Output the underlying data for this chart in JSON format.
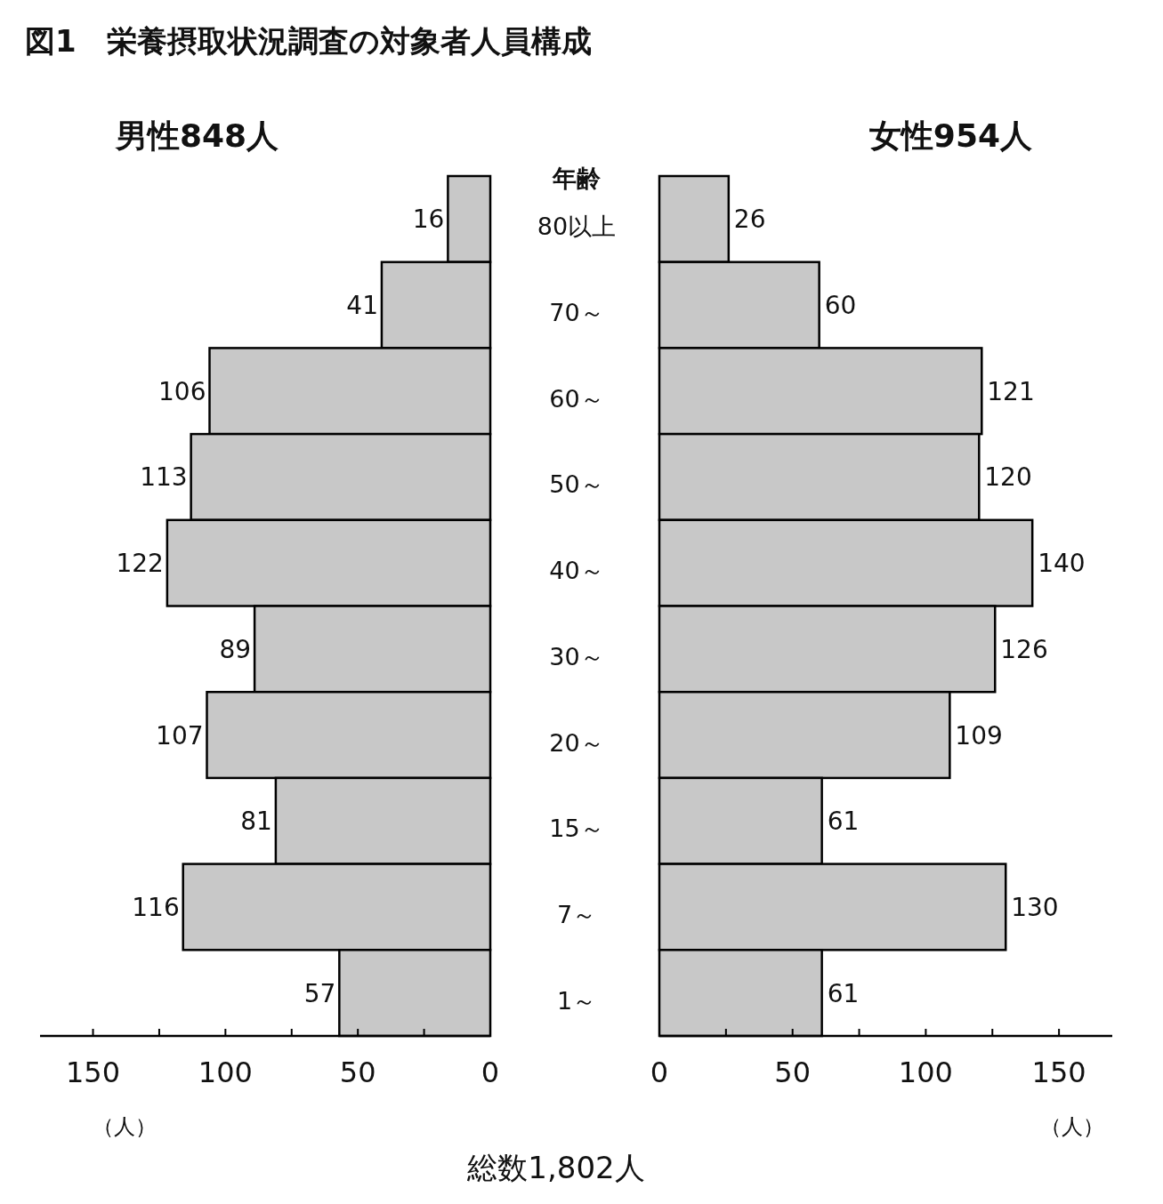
{
  "chart_data": [
    {
      "type": "bar",
      "orientation": "horizontal",
      "title": "図1　栄養摂取状況調査の対象者人員構成",
      "subtitle": "男性848人",
      "ylabel": "年齢",
      "xlabel": "（人）",
      "annotations": [
        "総数1,802人"
      ],
      "categories": [
        "80以上",
        "70～",
        "60～",
        "50～",
        "40～",
        "30～",
        "20～",
        "15～",
        "7～",
        "1～"
      ],
      "values": [
        16,
        41,
        106,
        113,
        122,
        89,
        107,
        81,
        116,
        57
      ],
      "color": "#c8c8c8",
      "xlim": [
        170,
        0
      ],
      "xticks": [
        150,
        {
          "value": 125,
          "label": null
        },
        100,
        {
          "value": 75,
          "label": null
        },
        50,
        {
          "value": 25,
          "label": null
        },
        0
      ],
      "data_labels": true
    },
    {
      "type": "bar",
      "orientation": "horizontal",
      "subtitle": "女性954人",
      "xlabel": "（人）",
      "categories": [
        null,
        null,
        null,
        null,
        null,
        null,
        null,
        null,
        null,
        null
      ],
      "values": [
        26,
        60,
        121,
        120,
        140,
        126,
        109,
        61,
        130,
        61
      ],
      "color": "#c8c8c8",
      "xlim": [
        0,
        170
      ],
      "xticks": [
        0,
        {
          "value": 25,
          "label": null
        },
        50,
        {
          "value": 75,
          "label": null
        },
        100,
        {
          "value": 125,
          "label": null
        },
        150
      ],
      "data_labels": true
    }
  ]
}
